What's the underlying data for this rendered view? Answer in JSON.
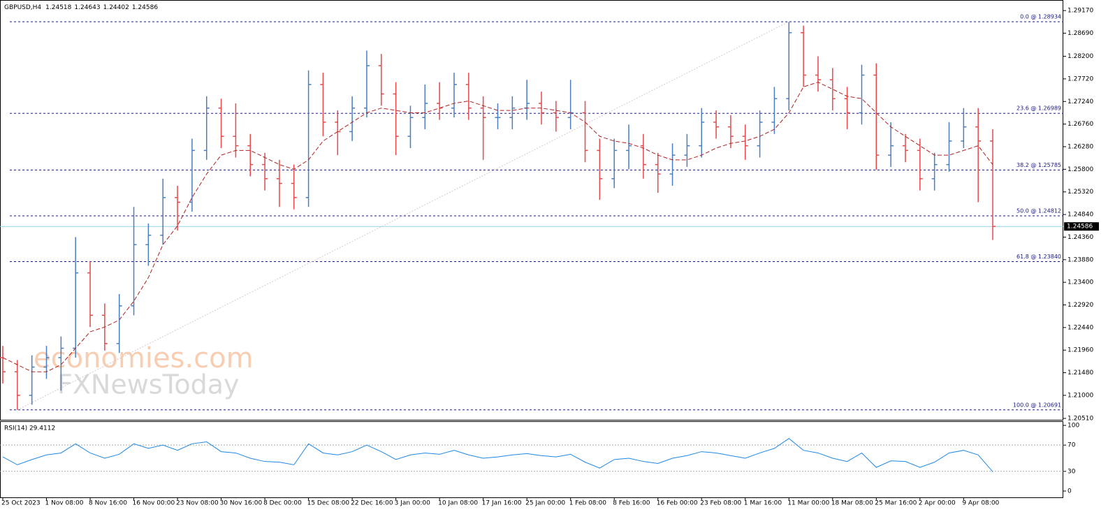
{
  "chart_data": [
    {
      "type": "ohlc",
      "title": "GBPUSD,H4",
      "header_values": [
        1.24518,
        1.24643,
        1.24402,
        1.24586
      ],
      "categories": [
        "25 Oct 2023",
        null,
        null,
        "1 Nov 08:00",
        null,
        null,
        "8 Nov 16:00",
        null,
        null,
        "16 Nov 00:00",
        null,
        null,
        "23 Nov 08:00",
        null,
        null,
        "30 Nov 16:00",
        null,
        null,
        "8 Dec 00:00",
        null,
        null,
        "15 Dec 08:00",
        null,
        null,
        "22 Dec 16:00",
        null,
        null,
        "3 Jan 00:00",
        null,
        null,
        "10 Jan 08:00",
        null,
        null,
        "17 Jan 16:00",
        null,
        null,
        "25 Jan 00:00",
        null,
        null,
        "1 Feb 08:00",
        null,
        null,
        "8 Feb 16:00",
        null,
        null,
        "16 Feb 00:00",
        null,
        null,
        "23 Feb 08:00",
        null,
        null,
        "1 Mar 16:00",
        null,
        null,
        "11 Mar 00:00",
        null,
        null,
        "18 Mar 08:00",
        null,
        null,
        "25 Mar 16:00",
        null,
        null,
        "2 Apr 00:00",
        null,
        null,
        "9 Apr 08:00",
        null,
        null
      ],
      "open": [
        1.218,
        1.215,
        1.21,
        1.216,
        1.218,
        1.22,
        1.236,
        1.227,
        1.221,
        1.229,
        1.242,
        1.244,
        1.252,
        1.251,
        1.262,
        1.271,
        1.265,
        1.263,
        1.259,
        1.256,
        1.255,
        1.252,
        1.276,
        1.268,
        1.266,
        1.271,
        1.28,
        1.274,
        1.265,
        1.269,
        1.272,
        1.271,
        1.276,
        1.271,
        1.269,
        1.269,
        1.271,
        1.272,
        1.27,
        1.269,
        1.27,
        1.262,
        1.256,
        1.262,
        1.263,
        1.259,
        1.257,
        1.261,
        1.263,
        1.268,
        1.267,
        1.265,
        1.263,
        1.268,
        1.273,
        1.287,
        1.278,
        1.277,
        1.273,
        1.27,
        1.278,
        1.261,
        1.263,
        1.262,
        1.256,
        1.259,
        1.264,
        1.267,
        1.264
      ],
      "high": [
        1.2205,
        1.2175,
        1.2185,
        1.2205,
        1.2225,
        1.2436,
        1.2385,
        1.2295,
        1.2315,
        1.25,
        1.2465,
        1.256,
        1.2545,
        1.2645,
        1.2735,
        1.273,
        1.272,
        1.2655,
        1.2615,
        1.26,
        1.259,
        1.279,
        1.2785,
        1.2705,
        1.2735,
        1.2832,
        1.2825,
        1.2765,
        1.2715,
        1.276,
        1.2765,
        1.2785,
        1.2785,
        1.2735,
        1.272,
        1.2735,
        1.277,
        1.2745,
        1.2725,
        1.277,
        1.2725,
        1.2645,
        1.2645,
        1.2675,
        1.2655,
        1.2615,
        1.2635,
        1.2655,
        1.271,
        1.2705,
        1.2695,
        1.2675,
        1.2705,
        1.2755,
        1.2893,
        1.2885,
        1.282,
        1.2795,
        1.2755,
        1.2802,
        1.2805,
        1.268,
        1.2655,
        1.2645,
        1.2615,
        1.268,
        1.271,
        1.271,
        1.2665
      ],
      "low": [
        1.2125,
        1.2069,
        1.208,
        1.2135,
        1.211,
        1.218,
        1.2245,
        1.2195,
        1.219,
        1.227,
        1.2375,
        1.242,
        1.245,
        1.249,
        1.26,
        1.2625,
        1.2605,
        1.2565,
        1.2535,
        1.25,
        1.2495,
        1.25,
        1.265,
        1.261,
        1.264,
        1.269,
        1.2715,
        1.261,
        1.2625,
        1.2665,
        1.2685,
        1.269,
        1.2685,
        1.26,
        1.2665,
        1.2665,
        1.2685,
        1.2675,
        1.266,
        1.2665,
        1.2595,
        1.2515,
        1.254,
        1.258,
        1.256,
        1.253,
        1.2545,
        1.2585,
        1.2605,
        1.2645,
        1.2625,
        1.26,
        1.2605,
        1.2655,
        1.2705,
        1.2755,
        1.2745,
        1.2705,
        1.2665,
        1.2675,
        1.2579,
        1.2585,
        1.2595,
        1.2535,
        1.2535,
        1.2575,
        1.2625,
        1.251,
        1.243
      ],
      "close": [
        1.215,
        1.21,
        1.216,
        1.218,
        1.22,
        1.236,
        1.227,
        1.221,
        1.229,
        1.242,
        1.244,
        1.252,
        1.251,
        1.262,
        1.271,
        1.265,
        1.263,
        1.259,
        1.256,
        1.255,
        1.252,
        1.276,
        1.268,
        1.266,
        1.271,
        1.28,
        1.274,
        1.265,
        1.269,
        1.272,
        1.271,
        1.276,
        1.271,
        1.269,
        1.269,
        1.271,
        1.272,
        1.27,
        1.269,
        1.27,
        1.262,
        1.256,
        1.262,
        1.263,
        1.259,
        1.257,
        1.261,
        1.263,
        1.268,
        1.267,
        1.265,
        1.263,
        1.268,
        1.273,
        1.287,
        1.278,
        1.277,
        1.273,
        1.27,
        1.278,
        1.261,
        1.263,
        1.262,
        1.256,
        1.259,
        1.264,
        1.267,
        1.264,
        1.24586
      ],
      "up_color": "#4a7ebf",
      "down_color": "#e8484a",
      "series": [
        {
          "color": "#b22222",
          "values": [
            1.218,
            1.2165,
            1.215,
            1.215,
            1.2165,
            1.22,
            1.2235,
            1.2245,
            1.226,
            1.23,
            1.235,
            1.242,
            1.246,
            1.252,
            1.257,
            1.261,
            1.262,
            1.262,
            1.2605,
            1.259,
            1.258,
            1.26,
            1.264,
            1.266,
            1.268,
            1.27,
            1.271,
            1.2705,
            1.27,
            1.27,
            1.271,
            1.272,
            1.2725,
            1.2715,
            1.2705,
            1.2705,
            1.271,
            1.271,
            1.2705,
            1.27,
            1.268,
            1.265,
            1.264,
            1.2635,
            1.2625,
            1.261,
            1.26,
            1.26,
            1.261,
            1.2625,
            1.2635,
            1.264,
            1.265,
            1.2665,
            1.27,
            1.2755,
            1.2765,
            1.275,
            1.2735,
            1.273,
            1.27,
            1.267,
            1.265,
            1.263,
            1.261,
            1.261,
            1.262,
            1.263,
            1.259
          ]
        }
      ],
      "fib_levels": [
        {
          "value": 1.28934,
          "label": "0.0 @ 1.28934"
        },
        {
          "value": 1.26989,
          "label": "23.6 @ 1.26989"
        },
        {
          "value": 1.25785,
          "label": "38.2 @ 1.25785"
        },
        {
          "value": 1.24812,
          "label": "50.0 @ 1.24812"
        },
        {
          "value": 1.2384,
          "label": "61.8 @ 1.23840"
        },
        {
          "value": 1.20691,
          "label": "100.0 @ 1.20691"
        }
      ],
      "fib_color": "#1a1a80",
      "last_price": 1.24586,
      "last_price_color": "#8fd3ea",
      "ylim": [
        1.2048,
        1.2938
      ],
      "yticks": [
        {
          "value": 1.2917,
          "label": "1.29170"
        },
        {
          "value": 1.2869,
          "label": "1.28690"
        },
        {
          "value": 1.282,
          "label": "1.28200"
        },
        {
          "value": 1.2772,
          "label": "1.27720"
        },
        {
          "value": 1.2724,
          "label": "1.27240"
        },
        {
          "value": 1.2676,
          "label": "1.26760"
        },
        {
          "value": 1.2628,
          "label": "1.26280"
        },
        {
          "value": 1.258,
          "label": "1.25800"
        },
        {
          "value": 1.2532,
          "label": "1.25320"
        },
        {
          "value": 1.2484,
          "label": "1.24840"
        },
        {
          "value": 1.2436,
          "label": "1.24360"
        },
        {
          "value": 1.2388,
          "label": "1.23880"
        },
        {
          "value": 1.234,
          "label": "1.23400"
        },
        {
          "value": 1.2292,
          "label": "1.22920"
        },
        {
          "value": 1.2244,
          "label": "1.22440"
        },
        {
          "value": 1.2196,
          "label": "1.21960"
        },
        {
          "value": 1.2148,
          "label": "1.21480"
        },
        {
          "value": 1.21,
          "label": "1.21000"
        },
        {
          "value": 1.2051,
          "label": "1.20510"
        }
      ],
      "watermark": [
        "economies.com",
        "FXNewsToday"
      ]
    },
    {
      "type": "line",
      "title": "RSI(14) 29.4112",
      "series": [
        {
          "color": "#1e88e5",
          "values": [
            52,
            40,
            48,
            55,
            58,
            72,
            58,
            50,
            56,
            72,
            65,
            70,
            62,
            72,
            75,
            60,
            58,
            50,
            45,
            44,
            40,
            72,
            58,
            55,
            60,
            70,
            60,
            48,
            55,
            58,
            56,
            62,
            55,
            50,
            52,
            55,
            57,
            54,
            52,
            56,
            44,
            35,
            48,
            50,
            45,
            42,
            50,
            54,
            60,
            58,
            54,
            50,
            58,
            65,
            80,
            62,
            58,
            50,
            45,
            58,
            36,
            46,
            45,
            36,
            44,
            58,
            62,
            55,
            29.4112
          ]
        }
      ],
      "levels": [
        30,
        70
      ],
      "ylim": [
        -9.6,
        105.3
      ],
      "yticks": [
        0,
        30,
        70,
        100
      ]
    }
  ]
}
